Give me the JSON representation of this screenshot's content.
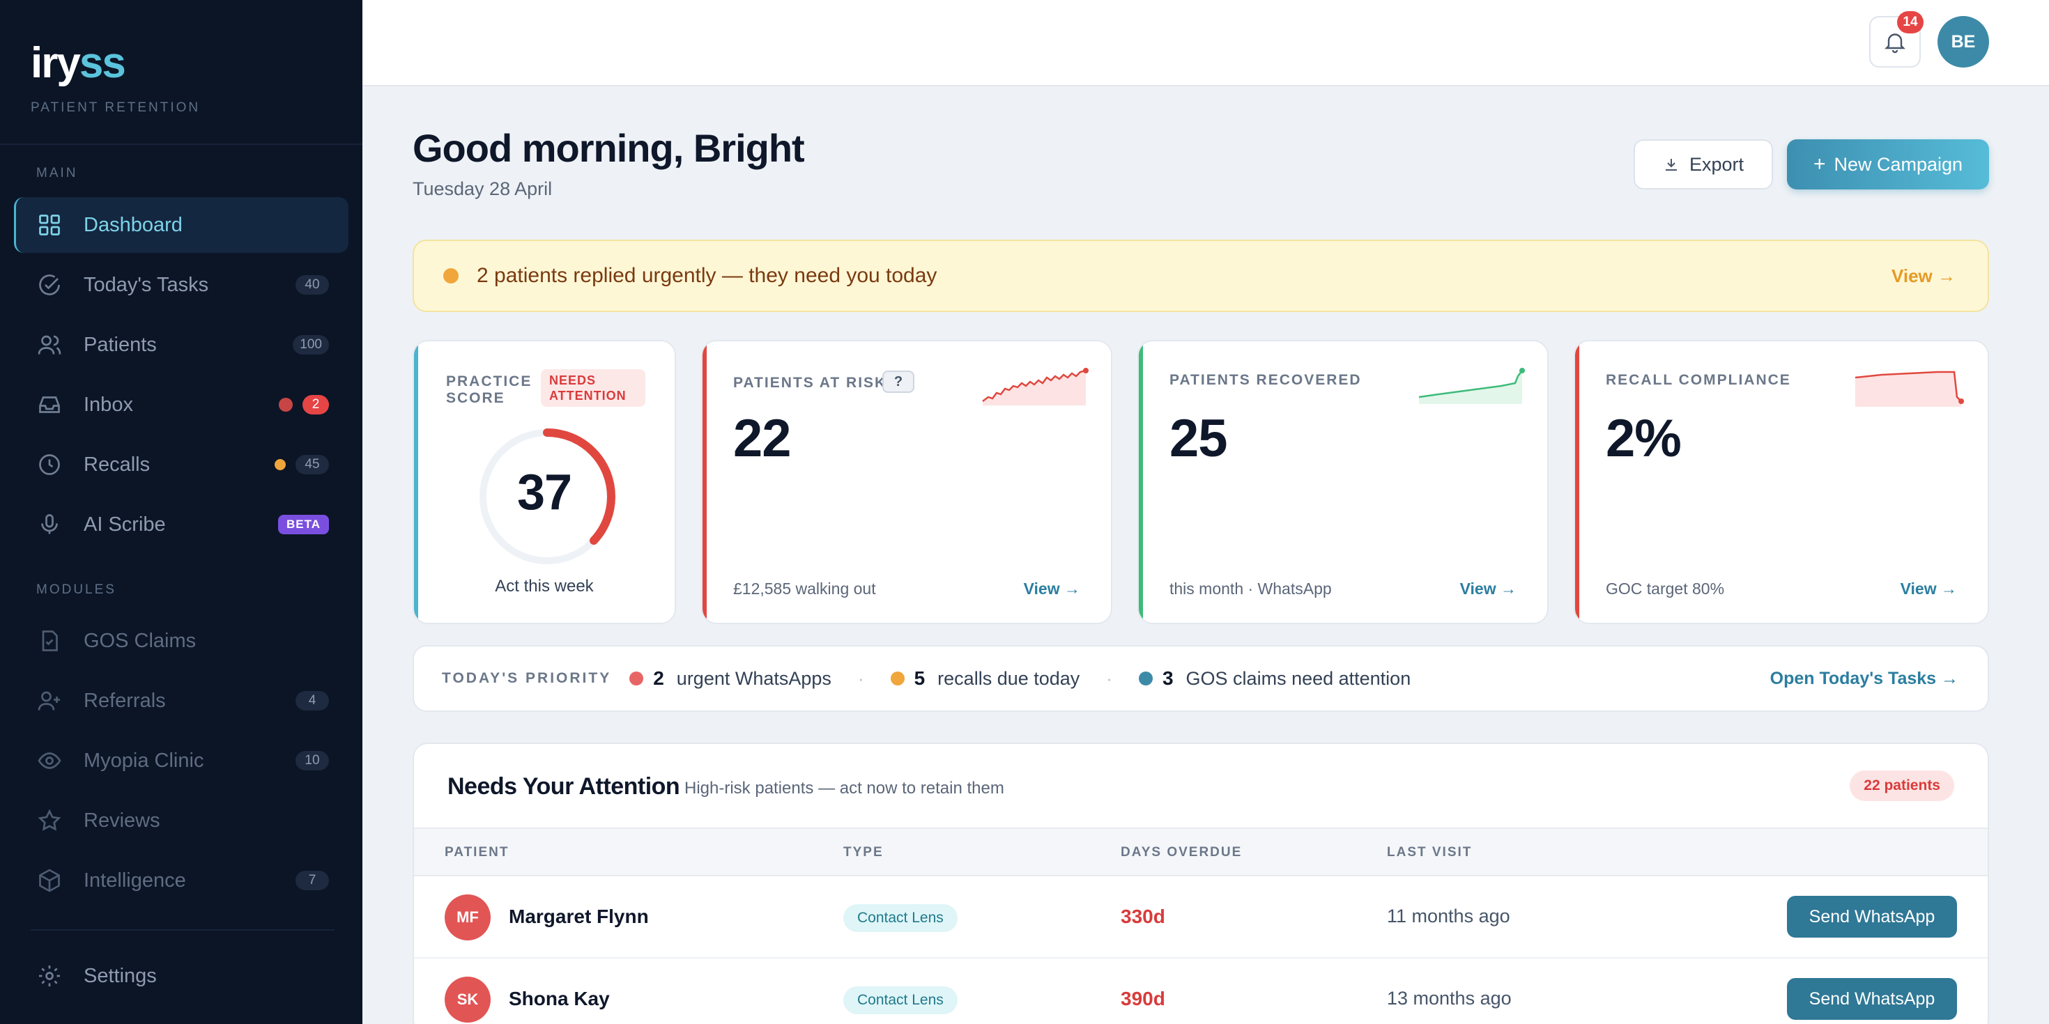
{
  "brand": {
    "logo_main": "iry",
    "logo_accent": "ss",
    "subtitle": "PATIENT RETENTION"
  },
  "sidebar": {
    "main_label": "MAIN",
    "modules_label": "MODULES",
    "items": [
      {
        "label": "Dashboard",
        "icon": "grid-icon",
        "active": true
      },
      {
        "label": "Today's Tasks",
        "icon": "check-circle-icon",
        "count": "40"
      },
      {
        "label": "Patients",
        "icon": "users-icon",
        "count": "100"
      },
      {
        "label": "Inbox",
        "icon": "inbox-icon",
        "count": "2",
        "dot_color": "#e64545"
      },
      {
        "label": "Recalls",
        "icon": "clock-icon",
        "count": "45",
        "dot_color": "#f0a63b"
      },
      {
        "label": "AI Scribe",
        "icon": "mic-icon",
        "badge": "BETA"
      },
      {
        "label": "GOS Claims",
        "icon": "file-icon"
      },
      {
        "label": "Referrals",
        "icon": "user-plus-icon",
        "count": "4"
      },
      {
        "label": "Myopia Clinic",
        "icon": "eye-icon",
        "count": "10"
      },
      {
        "label": "Reviews",
        "icon": "star-icon"
      },
      {
        "label": "Intelligence",
        "icon": "cube-icon",
        "count": "7"
      }
    ],
    "settings_label": "Settings"
  },
  "topbar": {
    "notifications": "14",
    "avatar_initials": "BE"
  },
  "header": {
    "greeting": "Good morning, Bright",
    "date": "Tuesday 28 April",
    "export_label": "Export",
    "new_campaign_label": "New Campaign"
  },
  "alert": {
    "text": "2 patients replied urgently — they need you today",
    "link": "View →"
  },
  "kpis": {
    "practice": {
      "label": "PRACTICE SCORE",
      "badge": "NEEDS ATTENTION",
      "value": "37",
      "score_fraction": 0.37,
      "foot": "Act this week"
    },
    "risk": {
      "label": "PATIENTS AT RISK",
      "help": "?",
      "value": "22",
      "foot": "£12,585 walking out",
      "link": "View →"
    },
    "recovered": {
      "label": "PATIENTS RECOVERED",
      "value": "25",
      "foot": "this month · WhatsApp",
      "link": "View →"
    },
    "recall": {
      "label": "RECALL COMPLIANCE",
      "value": "2%",
      "foot": "GOC target 80%",
      "link": "View →"
    }
  },
  "priority": {
    "label": "TODAY'S PRIORITY",
    "items": [
      {
        "count": "2",
        "text": "urgent WhatsApps",
        "color": "#e86565"
      },
      {
        "count": "5",
        "text": "recalls due today",
        "color": "#f0a63b"
      },
      {
        "count": "3",
        "text": "GOS claims need attention",
        "color": "#3d8aa8"
      }
    ],
    "separator": "·",
    "link": "Open Today's Tasks →"
  },
  "attention": {
    "title": "Needs Your Attention",
    "subtitle": "High-risk patients — act now to retain them",
    "badge": "22 patients",
    "columns": [
      "PATIENT",
      "TYPE",
      "DAYS OVERDUE",
      "LAST VISIT"
    ],
    "rows": [
      {
        "initials": "MF",
        "name": "Margaret Flynn",
        "type": "Contact Lens",
        "overdue": "330d",
        "last_visit": "11 months ago",
        "action": "Send WhatsApp"
      },
      {
        "initials": "SK",
        "name": "Shona Kay",
        "type": "Contact Lens",
        "overdue": "390d",
        "last_visit": "13 months ago",
        "action": "Send WhatsApp"
      }
    ]
  },
  "colors": {
    "accent": "#4bb4cf",
    "danger": "#e64545",
    "success": "#3dbb7a",
    "warning": "#f0a63b"
  }
}
